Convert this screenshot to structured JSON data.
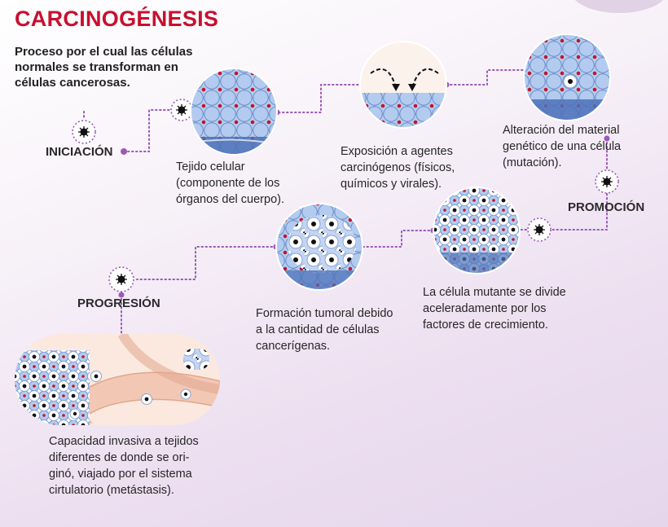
{
  "title": "CARCINOGÉNESIS",
  "subtitle": "Proceso por el cual las células\nnormales se transforman en\ncélulas cancerosas.",
  "stages": {
    "iniciacion": "INICIACIÓN",
    "promocion": "PROMOCIÓN",
    "progresion": "PROGRESIÓN"
  },
  "captions": {
    "tejido": "Tejido celular\n(componente de los\nórganos del cuerpo).",
    "exposicion": "Exposición a agentes\ncarcinógenos (físicos,\nquímicos y virales).",
    "alteracion": "Alteración del material\ngenético de una célula\n(mutación).",
    "divide": "La célula mutante se divide\naceleradamente por los\nfactores de crecimiento.",
    "formacion": "Formación tumoral debido\na la cantidad de células\ncancerígenas.",
    "invasiva": "Capacidad invasiva a tejidos\ndiferentes de donde se ori-\nginó, viajado por el sistema\ncirtulatorio (metástasis)."
  },
  "colors": {
    "title": "#c8102e",
    "connector": "#9b59b6",
    "cell_fill": "#a9c4ec",
    "nucleus": "#c0162b",
    "background": "#f3eaf5"
  }
}
